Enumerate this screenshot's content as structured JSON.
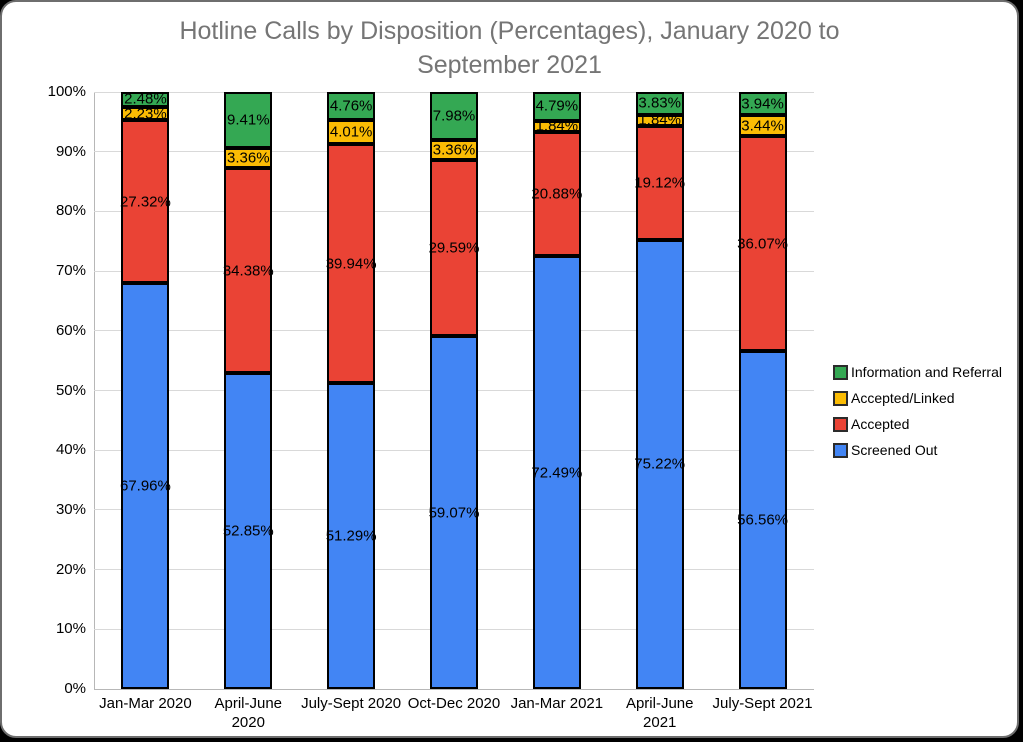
{
  "window": {
    "background": "#000000",
    "card_background": "#ffffff",
    "card_border": "#6e6e6e"
  },
  "chart_data": {
    "type": "bar",
    "stacked": true,
    "title": "Hotline Calls by Disposition (Percentages), January 2020 to September 2021",
    "title_color": "#757575",
    "categories": [
      "Jan-Mar 2020",
      "April-June\n2020",
      "July-Sept 2020",
      "Oct-Dec 2020",
      "Jan-Mar 2021",
      "April-June\n2021",
      "July-Sept 2021"
    ],
    "series": [
      {
        "name": "Screened Out",
        "color": "#4285F4",
        "values": [
          67.96,
          52.85,
          51.29,
          59.07,
          72.49,
          75.22,
          56.56
        ]
      },
      {
        "name": "Accepted",
        "color": "#EA4335",
        "values": [
          27.32,
          34.38,
          39.94,
          29.59,
          20.88,
          19.12,
          36.07
        ]
      },
      {
        "name": "Accepted/Linked",
        "color": "#FBBC04",
        "values": [
          2.23,
          3.36,
          4.01,
          3.36,
          1.84,
          1.84,
          3.44
        ]
      },
      {
        "name": "Information and Referral",
        "color": "#34A853",
        "values": [
          2.48,
          9.41,
          4.76,
          7.98,
          4.79,
          3.83,
          3.94
        ]
      }
    ],
    "data_labels": {
      "format": "percent_2dp",
      "color": "#000000",
      "examples": [
        "67.96%",
        "27.32%",
        "2.23%",
        "2.48%"
      ]
    },
    "legend": {
      "position": "right",
      "order": [
        "Information and Referral",
        "Accepted/Linked",
        "Accepted",
        "Screened Out"
      ]
    },
    "y_axis": {
      "min": 0,
      "max": 100,
      "tick_labels": [
        "0%",
        "10%",
        "20%",
        "30%",
        "40%",
        "50%",
        "60%",
        "70%",
        "80%",
        "90%",
        "100%"
      ],
      "grid": true,
      "gridline_color": "#d9d9d9",
      "axis_line_color": "#b7b7b7"
    },
    "bar_border_color": "#000000"
  }
}
